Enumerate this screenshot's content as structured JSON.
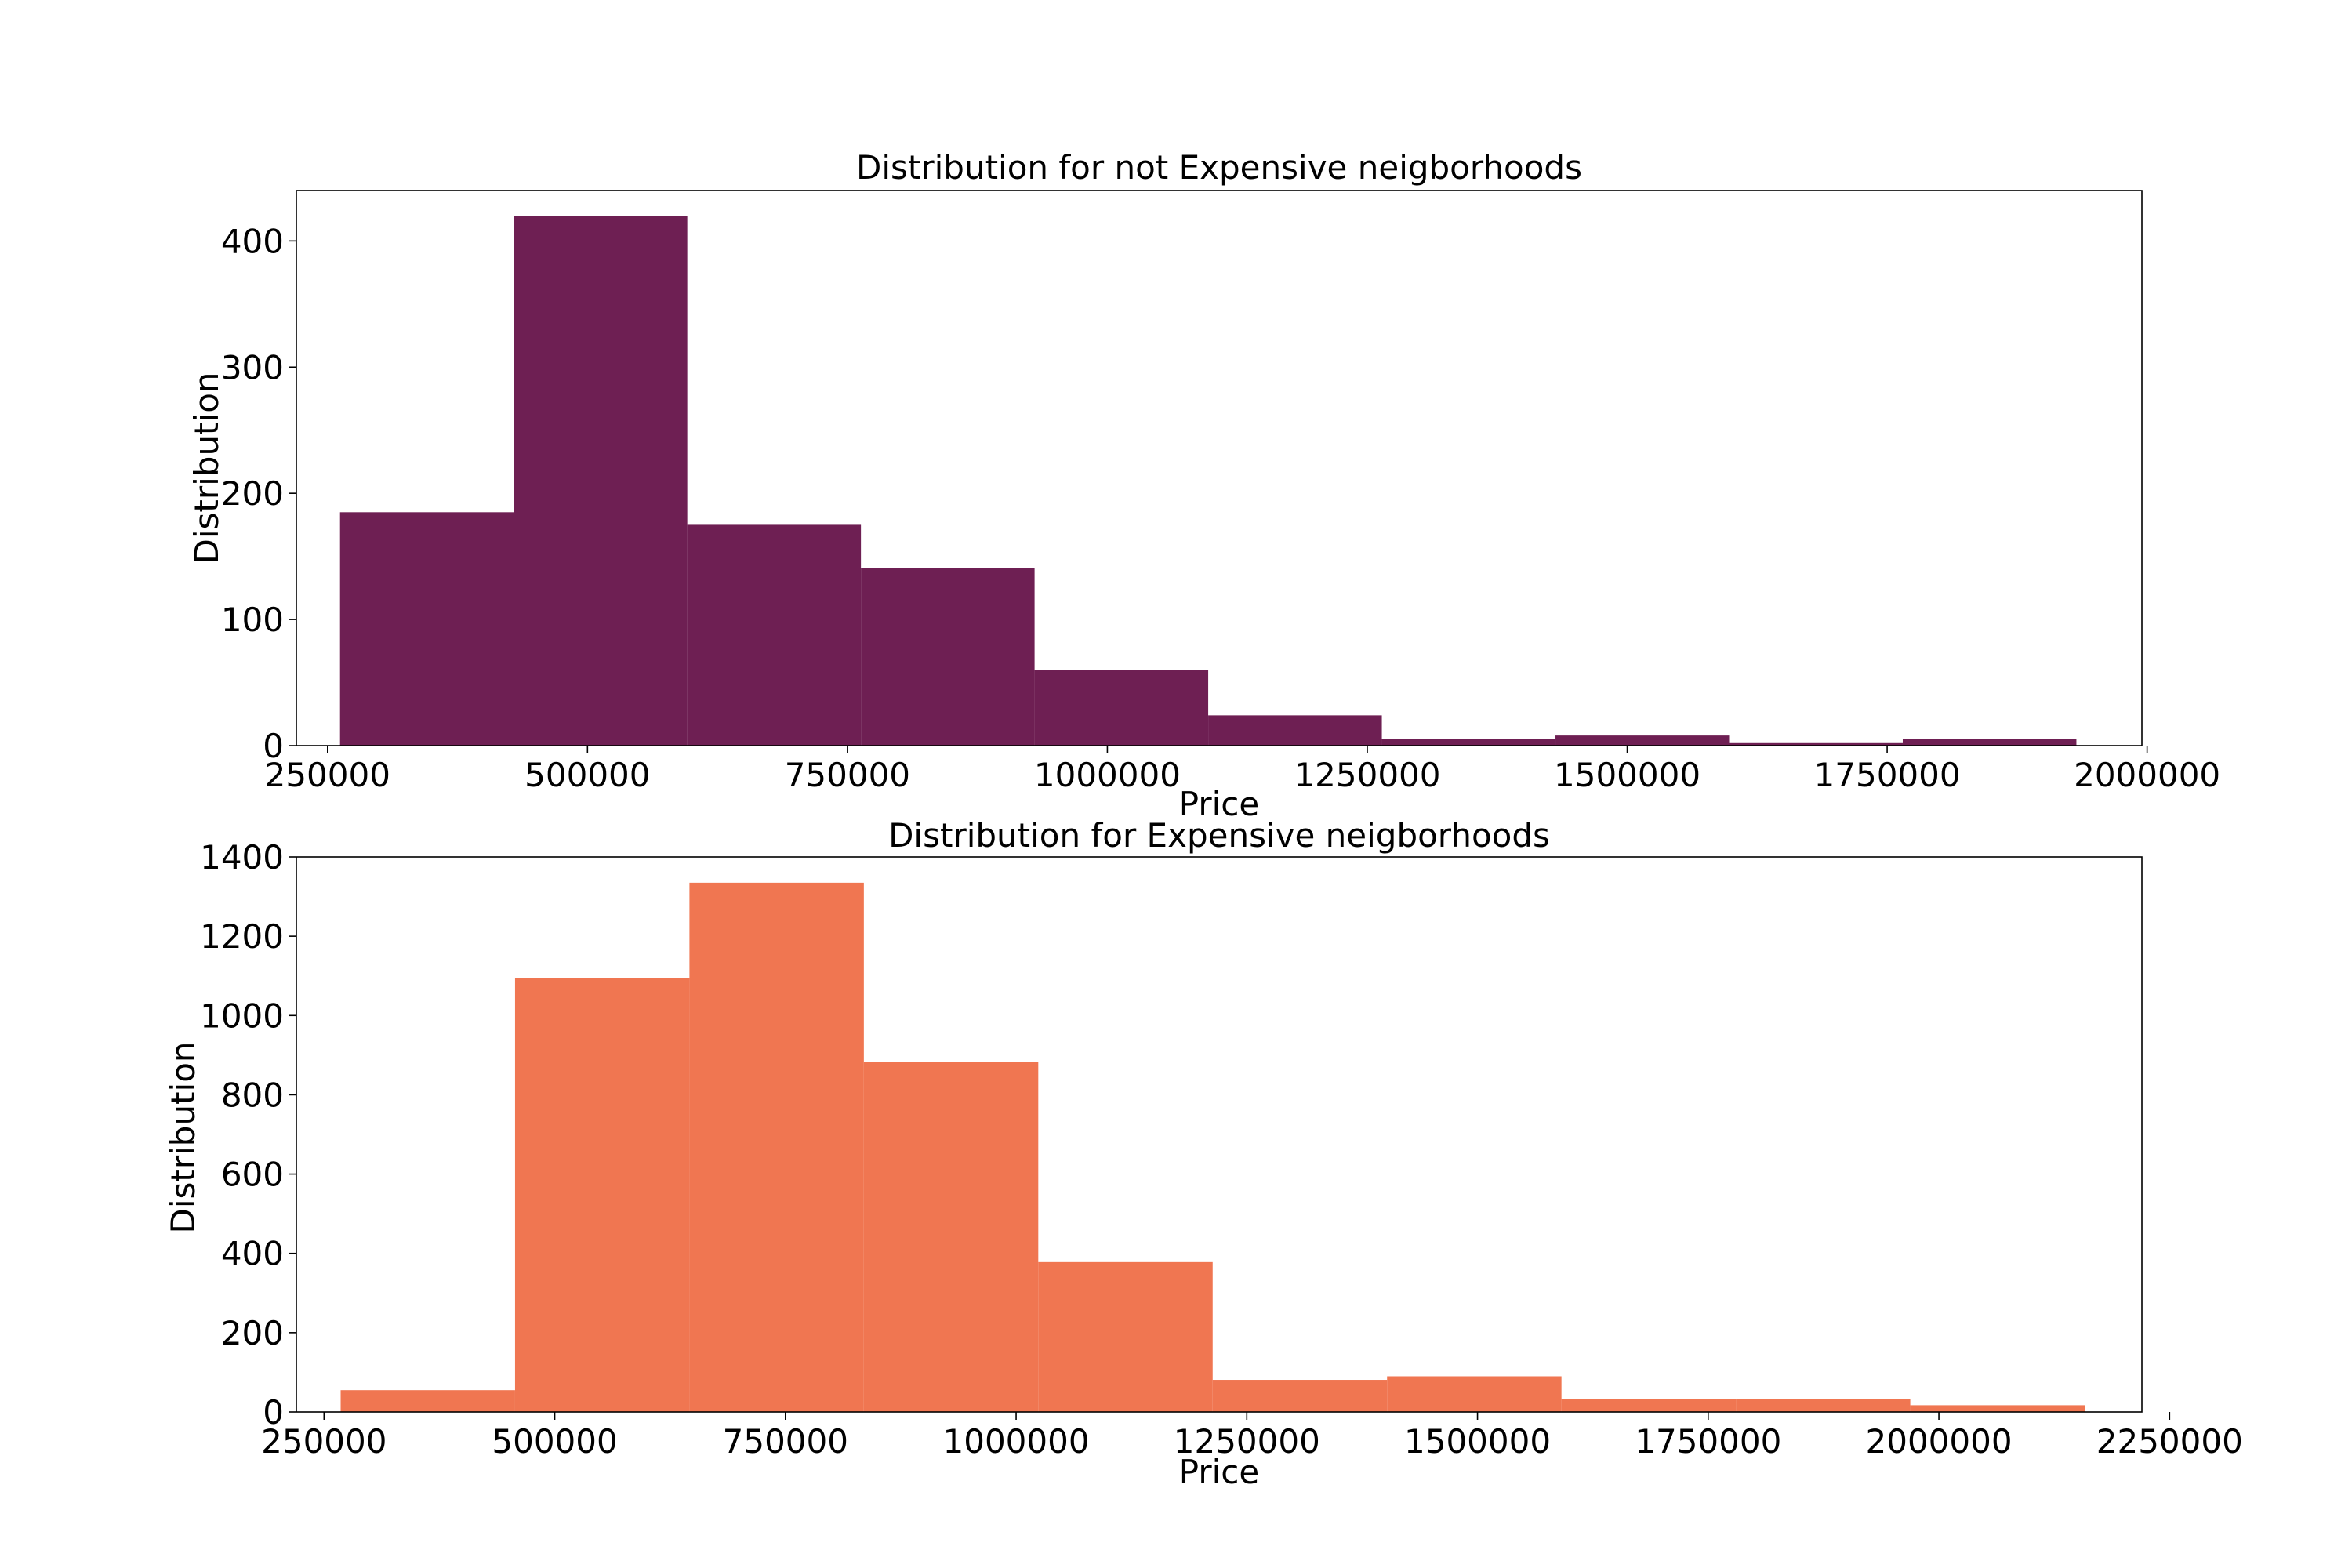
{
  "chart_data": [
    {
      "type": "bar",
      "title": "Distribution for not Expensive neigborhoods",
      "xlabel": "Price",
      "ylabel": "Distribution",
      "xlim": [
        220000,
        1995000
      ],
      "ylim": [
        0,
        440
      ],
      "xticks": [
        250000,
        500000,
        750000,
        1000000,
        1250000,
        1500000,
        1750000,
        2000000
      ],
      "yticks": [
        0,
        100,
        200,
        300,
        400
      ],
      "bin_edges": [
        262000,
        429000,
        596000,
        763000,
        930000,
        1097000,
        1264000,
        1431000,
        1598000,
        1765000,
        1932000
      ],
      "values": [
        185,
        420,
        175,
        141,
        60,
        24,
        5,
        8,
        2,
        5
      ],
      "color": "#6e1f53",
      "grid": false,
      "legend": "none"
    },
    {
      "type": "bar",
      "title": "Distribution for Expensive neigborhoods",
      "xlabel": "Price",
      "ylabel": "Distribution",
      "xlim": [
        220000,
        2220000
      ],
      "ylim": [
        0,
        1400
      ],
      "xticks": [
        250000,
        500000,
        750000,
        1000000,
        1250000,
        1500000,
        1750000,
        2000000,
        2250000
      ],
      "yticks": [
        0,
        200,
        400,
        600,
        800,
        1000,
        1200,
        1400
      ],
      "bin_edges": [
        268000,
        457000,
        646000,
        835000,
        1024000,
        1213000,
        1402000,
        1591000,
        1780000,
        1969000,
        2158000
      ],
      "values": [
        55,
        1095,
        1335,
        883,
        378,
        81,
        90,
        32,
        33,
        17
      ],
      "color": "#f07651",
      "grid": false,
      "legend": "none"
    }
  ]
}
